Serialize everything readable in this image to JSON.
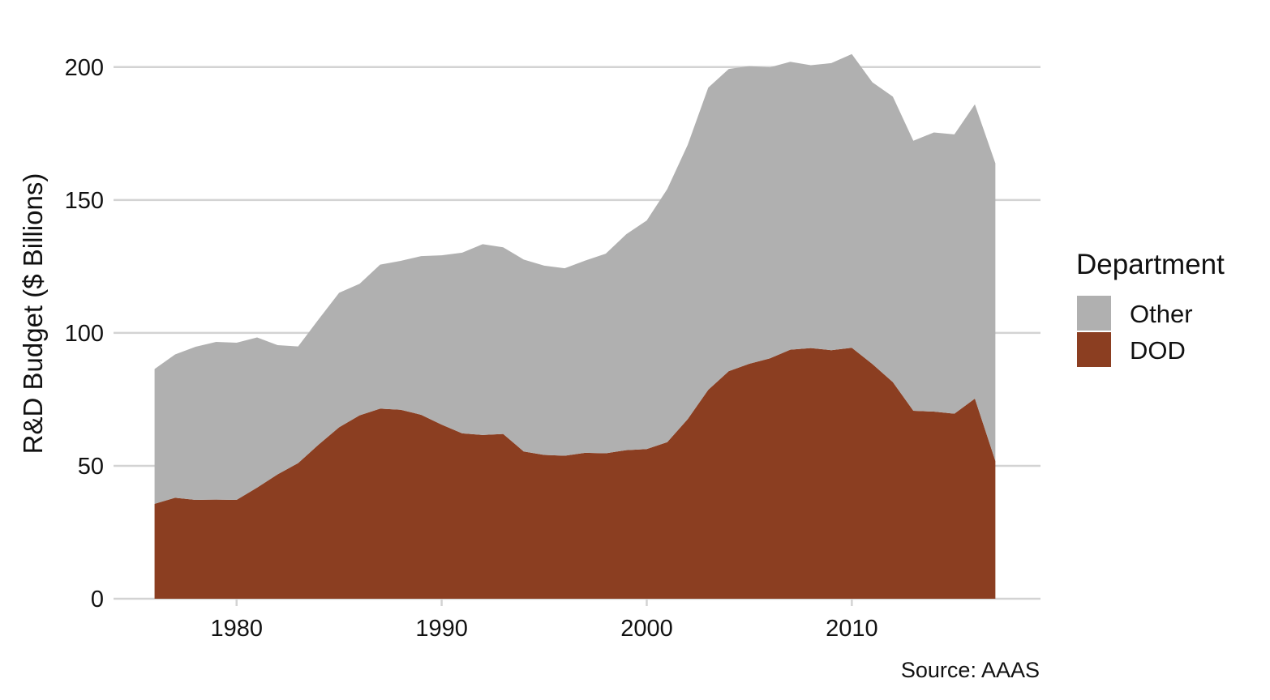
{
  "chart_data": {
    "type": "area",
    "stacked": true,
    "ylabel": "R&D Budget ($ Billions)",
    "xlabel": "",
    "caption": "Source: AAAS",
    "legend_title": "Department",
    "legend_position": "right",
    "xlim": [
      1974,
      2019.2
    ],
    "ylim": [
      0,
      210
    ],
    "x_ticks": [
      1980,
      1990,
      2000,
      2010
    ],
    "y_ticks": [
      0,
      50,
      100,
      150,
      200
    ],
    "grid": "horizontal",
    "x": [
      1976,
      1977,
      1978,
      1979,
      1980,
      1981,
      1982,
      1983,
      1984,
      1985,
      1986,
      1987,
      1988,
      1989,
      1990,
      1991,
      1992,
      1993,
      1994,
      1995,
      1996,
      1997,
      1998,
      1999,
      2000,
      2001,
      2002,
      2003,
      2004,
      2005,
      2006,
      2007,
      2008,
      2009,
      2010,
      2011,
      2012,
      2013,
      2014,
      2015,
      2016,
      2017
    ],
    "series": [
      {
        "name": "DOD",
        "color": "#8b3e21",
        "values": [
          35.7,
          38,
          37.2,
          37.3,
          37.2,
          41.8,
          46.8,
          51,
          58,
          64.5,
          69,
          71.5,
          71.1,
          69.2,
          65.5,
          62.2,
          61.6,
          62,
          55.4,
          54.1,
          53.8,
          54.9,
          54.7,
          55.9,
          56.3,
          58.9,
          67.6,
          78.6,
          85.6,
          88.4,
          90.4,
          93.7,
          94.3,
          93.5,
          94.4,
          88.3,
          81.5,
          70.7,
          70.4,
          69.6,
          75.3,
          51.8
        ]
      },
      {
        "name": "Other",
        "color": "#b0b0b0",
        "values": [
          50.7,
          53.9,
          57.6,
          59.3,
          59.1,
          56.5,
          48.6,
          43.9,
          47.1,
          50.6,
          49.5,
          54.2,
          56,
          59.7,
          63.7,
          68,
          71.8,
          70.2,
          72.2,
          71.2,
          70.5,
          72.3,
          75.1,
          81.2,
          86,
          95.2,
          103.2,
          113.7,
          113.7,
          112,
          109.5,
          108.3,
          106.4,
          108,
          110.5,
          106,
          107.4,
          101.6,
          105,
          105.1,
          110.7,
          112
        ]
      }
    ]
  }
}
